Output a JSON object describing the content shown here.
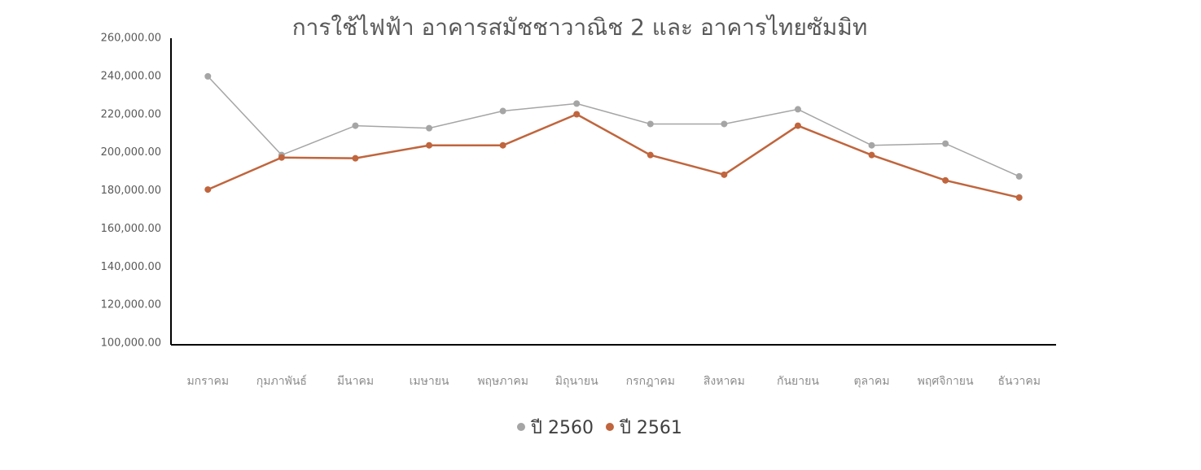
{
  "chart_data": {
    "type": "line",
    "title": "การใช้ไฟฟ้า อาคารสมัชชาวาณิช 2 และ อาคารไทยซัมมิท",
    "categories": [
      "มกราคม",
      "กุมภาพันธ์",
      "มีนาคม",
      "เมษายน",
      "พฤษภาคม",
      "มิถุนายน",
      "กรกฎาคม",
      "สิงหาคม",
      "กันยายน",
      "ตุลาคม",
      "พฤศจิกายน",
      "ธันวาคม"
    ],
    "series": [
      {
        "name": "ปี 2560",
        "color": "#a5a5a5",
        "values": [
          240000,
          198700,
          214100,
          212800,
          221800,
          225700,
          215000,
          215000,
          222700,
          203800,
          204700,
          187500
        ]
      },
      {
        "name": "ปี 2561",
        "color": "#c0653d",
        "values": [
          180600,
          197400,
          197000,
          203800,
          203800,
          220100,
          198700,
          188400,
          214100,
          198700,
          185400,
          176400
        ]
      }
    ],
    "ylim": [
      100000,
      260000
    ],
    "yticks": [
      {
        "value": 100000,
        "label": "100,000.00"
      },
      {
        "value": 120000,
        "label": "120,000.00"
      },
      {
        "value": 140000,
        "label": "140,000.00"
      },
      {
        "value": 160000,
        "label": "160,000.00"
      },
      {
        "value": 180000,
        "label": "180,000.00"
      },
      {
        "value": 200000,
        "label": "200,000.00"
      },
      {
        "value": 220000,
        "label": "220,000.00"
      },
      {
        "value": 240000,
        "label": "240,000.00"
      },
      {
        "value": 260000,
        "label": "260,000.00"
      }
    ],
    "legend": "bottom"
  }
}
